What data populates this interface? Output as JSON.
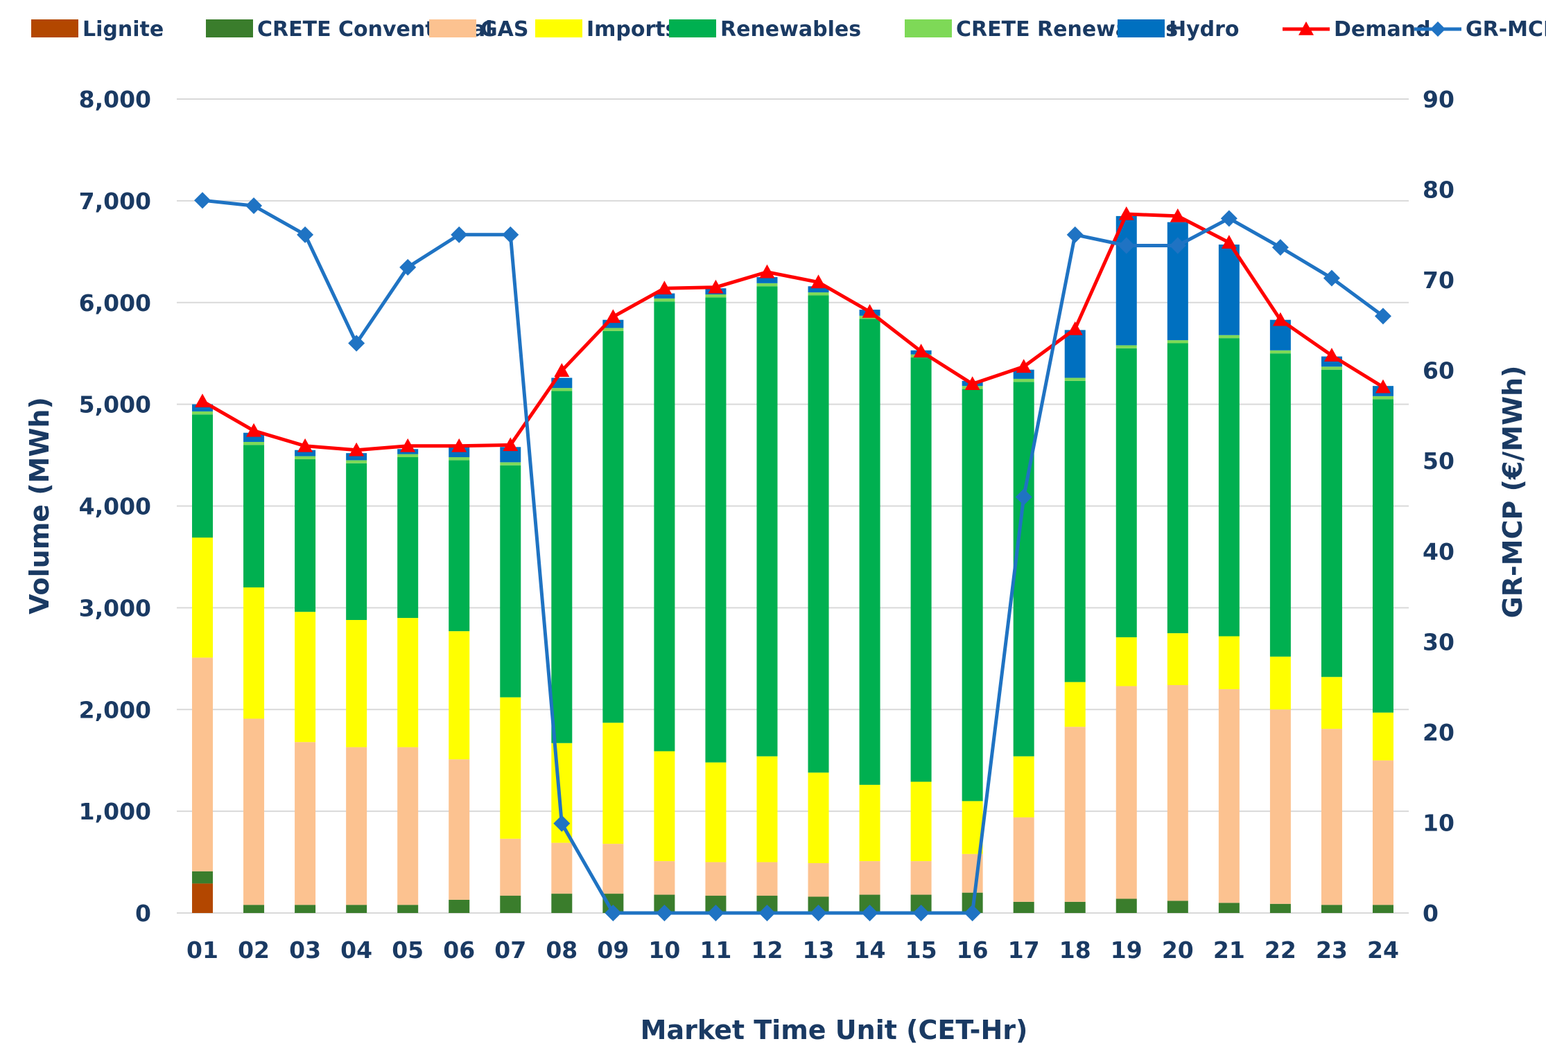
{
  "chart_data": {
    "type": "bar",
    "stacked": true,
    "xlabel": "Market Time Unit (CET-Hr)",
    "ylabel": "Volume (MWh)",
    "y2label": "GR-MCP (€/MWh)",
    "ylim": [
      0,
      8000
    ],
    "y2lim": [
      0,
      90
    ],
    "yticks": [
      "0",
      "1,000",
      "2,000",
      "3,000",
      "4,000",
      "5,000",
      "6,000",
      "7,000",
      "8,000"
    ],
    "y2ticks": [
      "0",
      "10",
      "20",
      "30",
      "40",
      "50",
      "60",
      "70",
      "80",
      "90"
    ],
    "grid": true,
    "legend_position": "top",
    "categories": [
      "01",
      "02",
      "03",
      "04",
      "05",
      "06",
      "07",
      "08",
      "09",
      "10",
      "11",
      "12",
      "13",
      "14",
      "15",
      "16",
      "17",
      "18",
      "19",
      "20",
      "21",
      "22",
      "23",
      "24"
    ],
    "series": [
      {
        "name": "Lignite",
        "kind": "bar",
        "color": "#b34700",
        "values": [
          290,
          0,
          0,
          0,
          0,
          0,
          0,
          0,
          0,
          0,
          0,
          0,
          0,
          0,
          0,
          0,
          0,
          0,
          0,
          0,
          0,
          0,
          0,
          0
        ]
      },
      {
        "name": "CRETE Conventional",
        "kind": "bar",
        "color": "#3a7d2c",
        "values": [
          120,
          80,
          80,
          80,
          80,
          130,
          170,
          190,
          190,
          180,
          170,
          170,
          160,
          180,
          180,
          200,
          110,
          110,
          140,
          120,
          100,
          90,
          80,
          80
        ]
      },
      {
        "name": "GAS",
        "kind": "bar",
        "color": "#fcc290",
        "values": [
          2100,
          1830,
          1600,
          1550,
          1550,
          1380,
          560,
          500,
          490,
          330,
          330,
          330,
          330,
          330,
          330,
          380,
          830,
          1720,
          2090,
          2120,
          2100,
          1910,
          1730,
          1420
        ]
      },
      {
        "name": "Imports",
        "kind": "bar",
        "color": "#ffff00",
        "values": [
          1180,
          1290,
          1280,
          1250,
          1270,
          1260,
          1390,
          980,
          1190,
          1080,
          980,
          1040,
          890,
          750,
          780,
          520,
          600,
          440,
          480,
          510,
          520,
          520,
          510,
          470
        ]
      },
      {
        "name": "Renewables",
        "kind": "bar",
        "color": "#00b050",
        "values": [
          1210,
          1400,
          1500,
          1540,
          1580,
          1680,
          2280,
          3460,
          3850,
          4420,
          4570,
          4620,
          4690,
          4580,
          4170,
          4050,
          3680,
          2960,
          2840,
          2850,
          2930,
          2980,
          3020,
          3080
        ]
      },
      {
        "name": "CRETE Renewables",
        "kind": "bar",
        "color": "#7ed957",
        "values": [
          30,
          30,
          30,
          30,
          30,
          30,
          30,
          30,
          30,
          30,
          30,
          30,
          30,
          30,
          30,
          30,
          30,
          30,
          30,
          30,
          30,
          30,
          30,
          30
        ]
      },
      {
        "name": "Hydro",
        "kind": "bar",
        "color": "#0070c0",
        "values": [
          70,
          90,
          60,
          70,
          50,
          120,
          150,
          100,
          80,
          50,
          60,
          60,
          60,
          60,
          40,
          50,
          90,
          470,
          1270,
          1160,
          890,
          300,
          100,
          100
        ]
      },
      {
        "name": "Demand",
        "kind": "line",
        "axis": "left",
        "color": "#ff0000",
        "marker": "triangle",
        "values": [
          5030,
          4740,
          4590,
          4550,
          4590,
          4590,
          4600,
          5330,
          5860,
          6140,
          6150,
          6300,
          6200,
          5910,
          5520,
          5200,
          5370,
          5740,
          6870,
          6850,
          6590,
          5830,
          5480,
          5170
        ]
      },
      {
        "name": "GR-MCP",
        "kind": "line",
        "axis": "right",
        "color": "#1f73c3",
        "marker": "diamond",
        "values": [
          78.8,
          78.2,
          75.0,
          63.0,
          71.4,
          75.0,
          75.0,
          9.9,
          0,
          0,
          0,
          0,
          0,
          0,
          0,
          0,
          46.0,
          75.0,
          73.8,
          73.8,
          76.8,
          73.6,
          70.2,
          66.0
        ]
      }
    ]
  }
}
